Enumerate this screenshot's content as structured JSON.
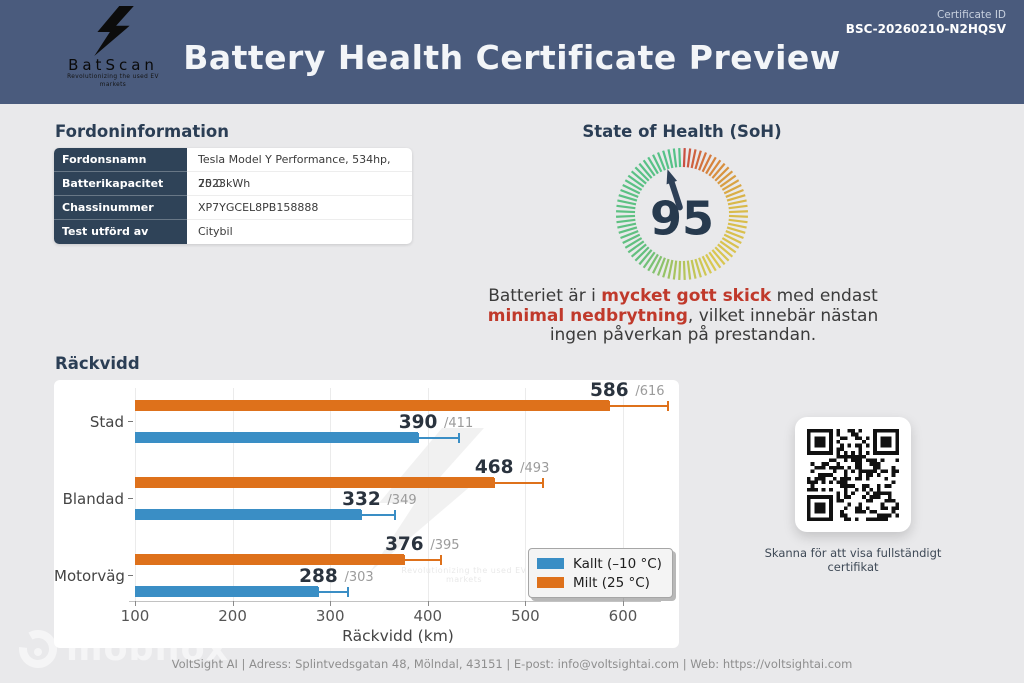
{
  "header": {
    "logo": {
      "brand": "BatScan",
      "tagline": "Revolutionizing the used EV markets"
    },
    "title": "Battery Health Certificate Preview",
    "certificate_id_label": "Certificate ID",
    "certificate_id": "BSC-20260210-N2HQSV"
  },
  "vehicle_info": {
    "heading": "Fordoninformation",
    "rows": [
      {
        "label": "Fordonsnamn",
        "value": "Tesla Model Y Performance, 534hp, 2023"
      },
      {
        "label": "Batterikapacitet",
        "value": "75.0 kWh"
      },
      {
        "label": "Chassinummer (VIN)",
        "value": "XP7YGCEL8PB158888"
      },
      {
        "label": "Test utförd av",
        "value": "Citybil"
      }
    ]
  },
  "soh": {
    "heading": "State of Health (SoH)",
    "value": 95,
    "description": [
      {
        "text": "Batteriet är i ",
        "bold": false
      },
      {
        "text": "mycket gott skick",
        "bold": true
      },
      {
        "text": " med endast ",
        "bold": false
      },
      {
        "text": "minimal nedbrytning",
        "bold": true
      },
      {
        "text": ", vilket innebär nästan ingen påverkan på prestandan.",
        "bold": false
      }
    ],
    "gauge_colors": {
      "red": "#c84b43",
      "orange": "#d8863c",
      "yellow": "#d9c852",
      "green": "#55c289",
      "needle": "#2e4057",
      "value_text": "#273a4e"
    }
  },
  "range_section": {
    "heading": "Räckvidd"
  },
  "chart_data": {
    "type": "bar",
    "orientation": "horizontal",
    "title": "Räckvidd",
    "categories": [
      "Stad",
      "Blandad",
      "Motorväg"
    ],
    "series": [
      {
        "name": "Milt (25 °C)",
        "color": "#de711b",
        "values": [
          586,
          468,
          376
        ],
        "max_values": [
          616,
          493,
          395
        ]
      },
      {
        "name": "Kallt (–10 °C)",
        "color": "#3a8ec5",
        "values": [
          390,
          332,
          288
        ],
        "max_values": [
          411,
          349,
          303
        ]
      }
    ],
    "value_label_prefix_max": "/",
    "xlabel": "Räckvidd (km)",
    "xticks": [
      100,
      200,
      300,
      400,
      500,
      600
    ],
    "xlim": [
      100,
      638
    ],
    "grid": true,
    "legend_position": "lower right",
    "legend_order": [
      "Kallt (–10 °C)",
      "Milt (25 °C)"
    ]
  },
  "qr": {
    "caption": "Skanna för att visa fullständigt certifikat"
  },
  "footer": {
    "text": "VoltSight AI | Adress: Splintvedsgatan 48, Mölndal, 43151 | E-post: info@voltsightai.com | Web: https://voltsightai.com"
  },
  "watermark": {
    "brand": "mobilox"
  }
}
